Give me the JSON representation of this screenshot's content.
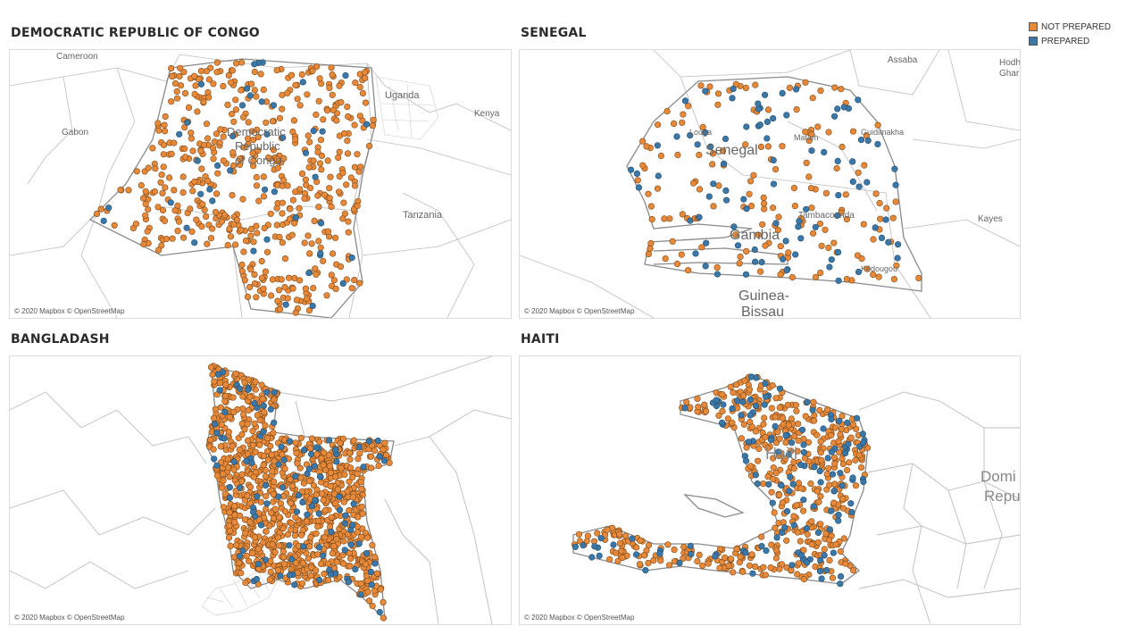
{
  "legend": {
    "items": [
      {
        "label": "NOT PREPARED",
        "color": "#e8893a"
      },
      {
        "label": "PREPARED",
        "color": "#3b78a8"
      }
    ]
  },
  "colors": {
    "not_prepared": "#e8893a",
    "prepared": "#3b78a8",
    "border": "#9a9a9a",
    "marker_stroke": "#7a4a1a"
  },
  "panels": [
    {
      "id": "drc",
      "title": "DEMOCRATIC REPUBLIC OF CONGO",
      "credit": "© 2020 Mapbox © OpenStreetMap",
      "labels": [
        "Cameroon",
        "Uganda",
        "Gabon",
        "Kenya",
        "Democratic",
        "Republic",
        "of Congo",
        "Tanzania"
      ],
      "points": {
        "not_prepared": 520,
        "prepared": 45
      }
    },
    {
      "id": "senegal",
      "title": "SENEGAL",
      "credit": "© 2020 Mapbox © OpenStreetMap",
      "labels": [
        "Assaba",
        "Hodh",
        "Ghar",
        "Louga",
        "Senegal",
        "Matam",
        "Guidimakha",
        "Tambacounda",
        "Kayes",
        "Gambia",
        "Kédougou",
        "Guinea-",
        "Bissau"
      ],
      "points": {
        "not_prepared": 160,
        "prepared": 90
      }
    },
    {
      "id": "bangladesh",
      "title": "BANGLADASH",
      "credit": "© 2020 Mapbox © OpenStreetMap",
      "labels": [],
      "points": {
        "not_prepared": 1100,
        "prepared": 110
      }
    },
    {
      "id": "haiti",
      "title": "HAITI",
      "credit": "© 2020 Mapbox © OpenStreetMap",
      "labels": [
        "Haiti",
        "Domi",
        "Repu"
      ],
      "points": {
        "not_prepared": 520,
        "prepared": 130
      }
    }
  ]
}
